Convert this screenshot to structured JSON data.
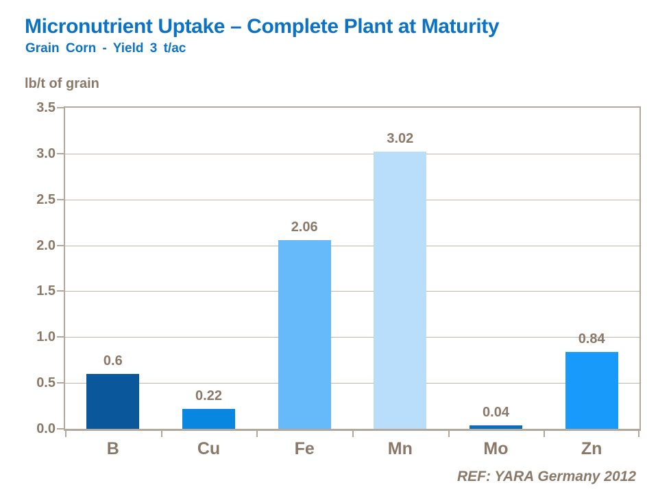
{
  "chart_data": {
    "type": "bar",
    "title": "Micronutrient Uptake – Complete Plant at Maturity",
    "subtitle": "Grain Corn - Yield 3 t/ac",
    "ylabel": "lb/t of grain",
    "xlabel": "",
    "categories": [
      "B",
      "Cu",
      "Fe",
      "Mn",
      "Mo",
      "Zn"
    ],
    "values": [
      0.6,
      0.22,
      2.06,
      3.02,
      0.04,
      0.84
    ],
    "value_labels": [
      "0.6",
      "0.22",
      "2.06",
      "3.02",
      "0.04",
      "0.84"
    ],
    "bar_colors": [
      "#0A579B",
      "#0887E1",
      "#66BAFA",
      "#B8DEFB",
      "#0B6CBA",
      "#189AFA"
    ],
    "ylim": [
      0,
      3.5
    ],
    "yticks": [
      0,
      0.5,
      1,
      1.5,
      2,
      2.5,
      3,
      3.5
    ],
    "ytick_labels": [
      "0.0",
      "0.5",
      "1.0",
      "1.5",
      "2.0",
      "2.5",
      "3.0",
      "3.5"
    ],
    "grid": true,
    "legend": "none",
    "source": "REF: YARA Germany 2012"
  },
  "colors": {
    "title": "#0C72C6",
    "axis_text": "#8A7968",
    "axis_line": "#B3A89B",
    "gridline": "#BFB5A8",
    "background": "#FFFFFF"
  }
}
